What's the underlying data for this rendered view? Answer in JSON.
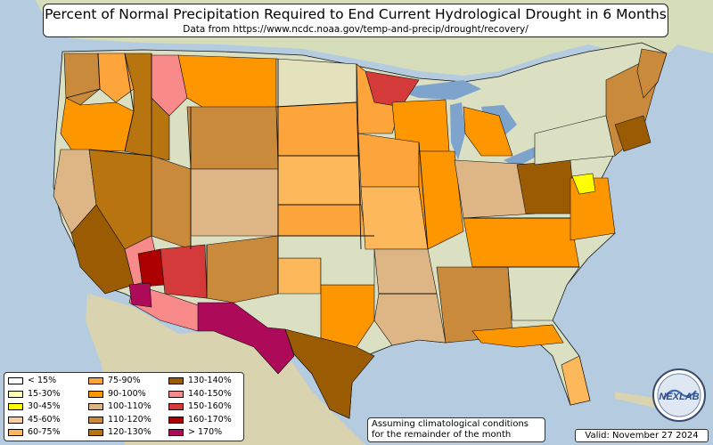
{
  "title": "Percent of Normal Precipitation Required to End Current Hydrological Drought in 6 Months",
  "subtitle": "Data from https://www.ncdc.noaa.gov/temp-and-precip/drought/recovery/",
  "note": {
    "line1": "Assuming climatological conditions",
    "line2": "for the remainder of the month"
  },
  "valid": "Valid: November 27 2024",
  "logo_text": "NEXLAB",
  "legend": [
    {
      "label": "< 15%",
      "color": "#ffffff"
    },
    {
      "label": "15-30%",
      "color": "#ffffb3"
    },
    {
      "label": "30-45%",
      "color": "#ffff00"
    },
    {
      "label": "45-60%",
      "color": "#f7cf9e"
    },
    {
      "label": "60-75%",
      "color": "#fdb85c"
    },
    {
      "label": "75-90%",
      "color": "#fda43a"
    },
    {
      "label": "90-100%",
      "color": "#fe9600"
    },
    {
      "label": "100-110%",
      "color": "#deb584"
    },
    {
      "label": "110-120%",
      "color": "#c98a3c"
    },
    {
      "label": "120-130%",
      "color": "#b8750f"
    },
    {
      "label": "130-140%",
      "color": "#9a5b02"
    },
    {
      "label": "140-150%",
      "color": "#f98a8a"
    },
    {
      "label": "150-160%",
      "color": "#d43a3a"
    },
    {
      "label": "160-170%",
      "color": "#ad0000"
    },
    {
      "label": "> 170%",
      "color": "#ad0a5a"
    }
  ],
  "colors": {
    "ocean": "#b4cbe0",
    "land": "#dbe0c2",
    "lakes": "#7ea3cc",
    "border": "#111111"
  }
}
